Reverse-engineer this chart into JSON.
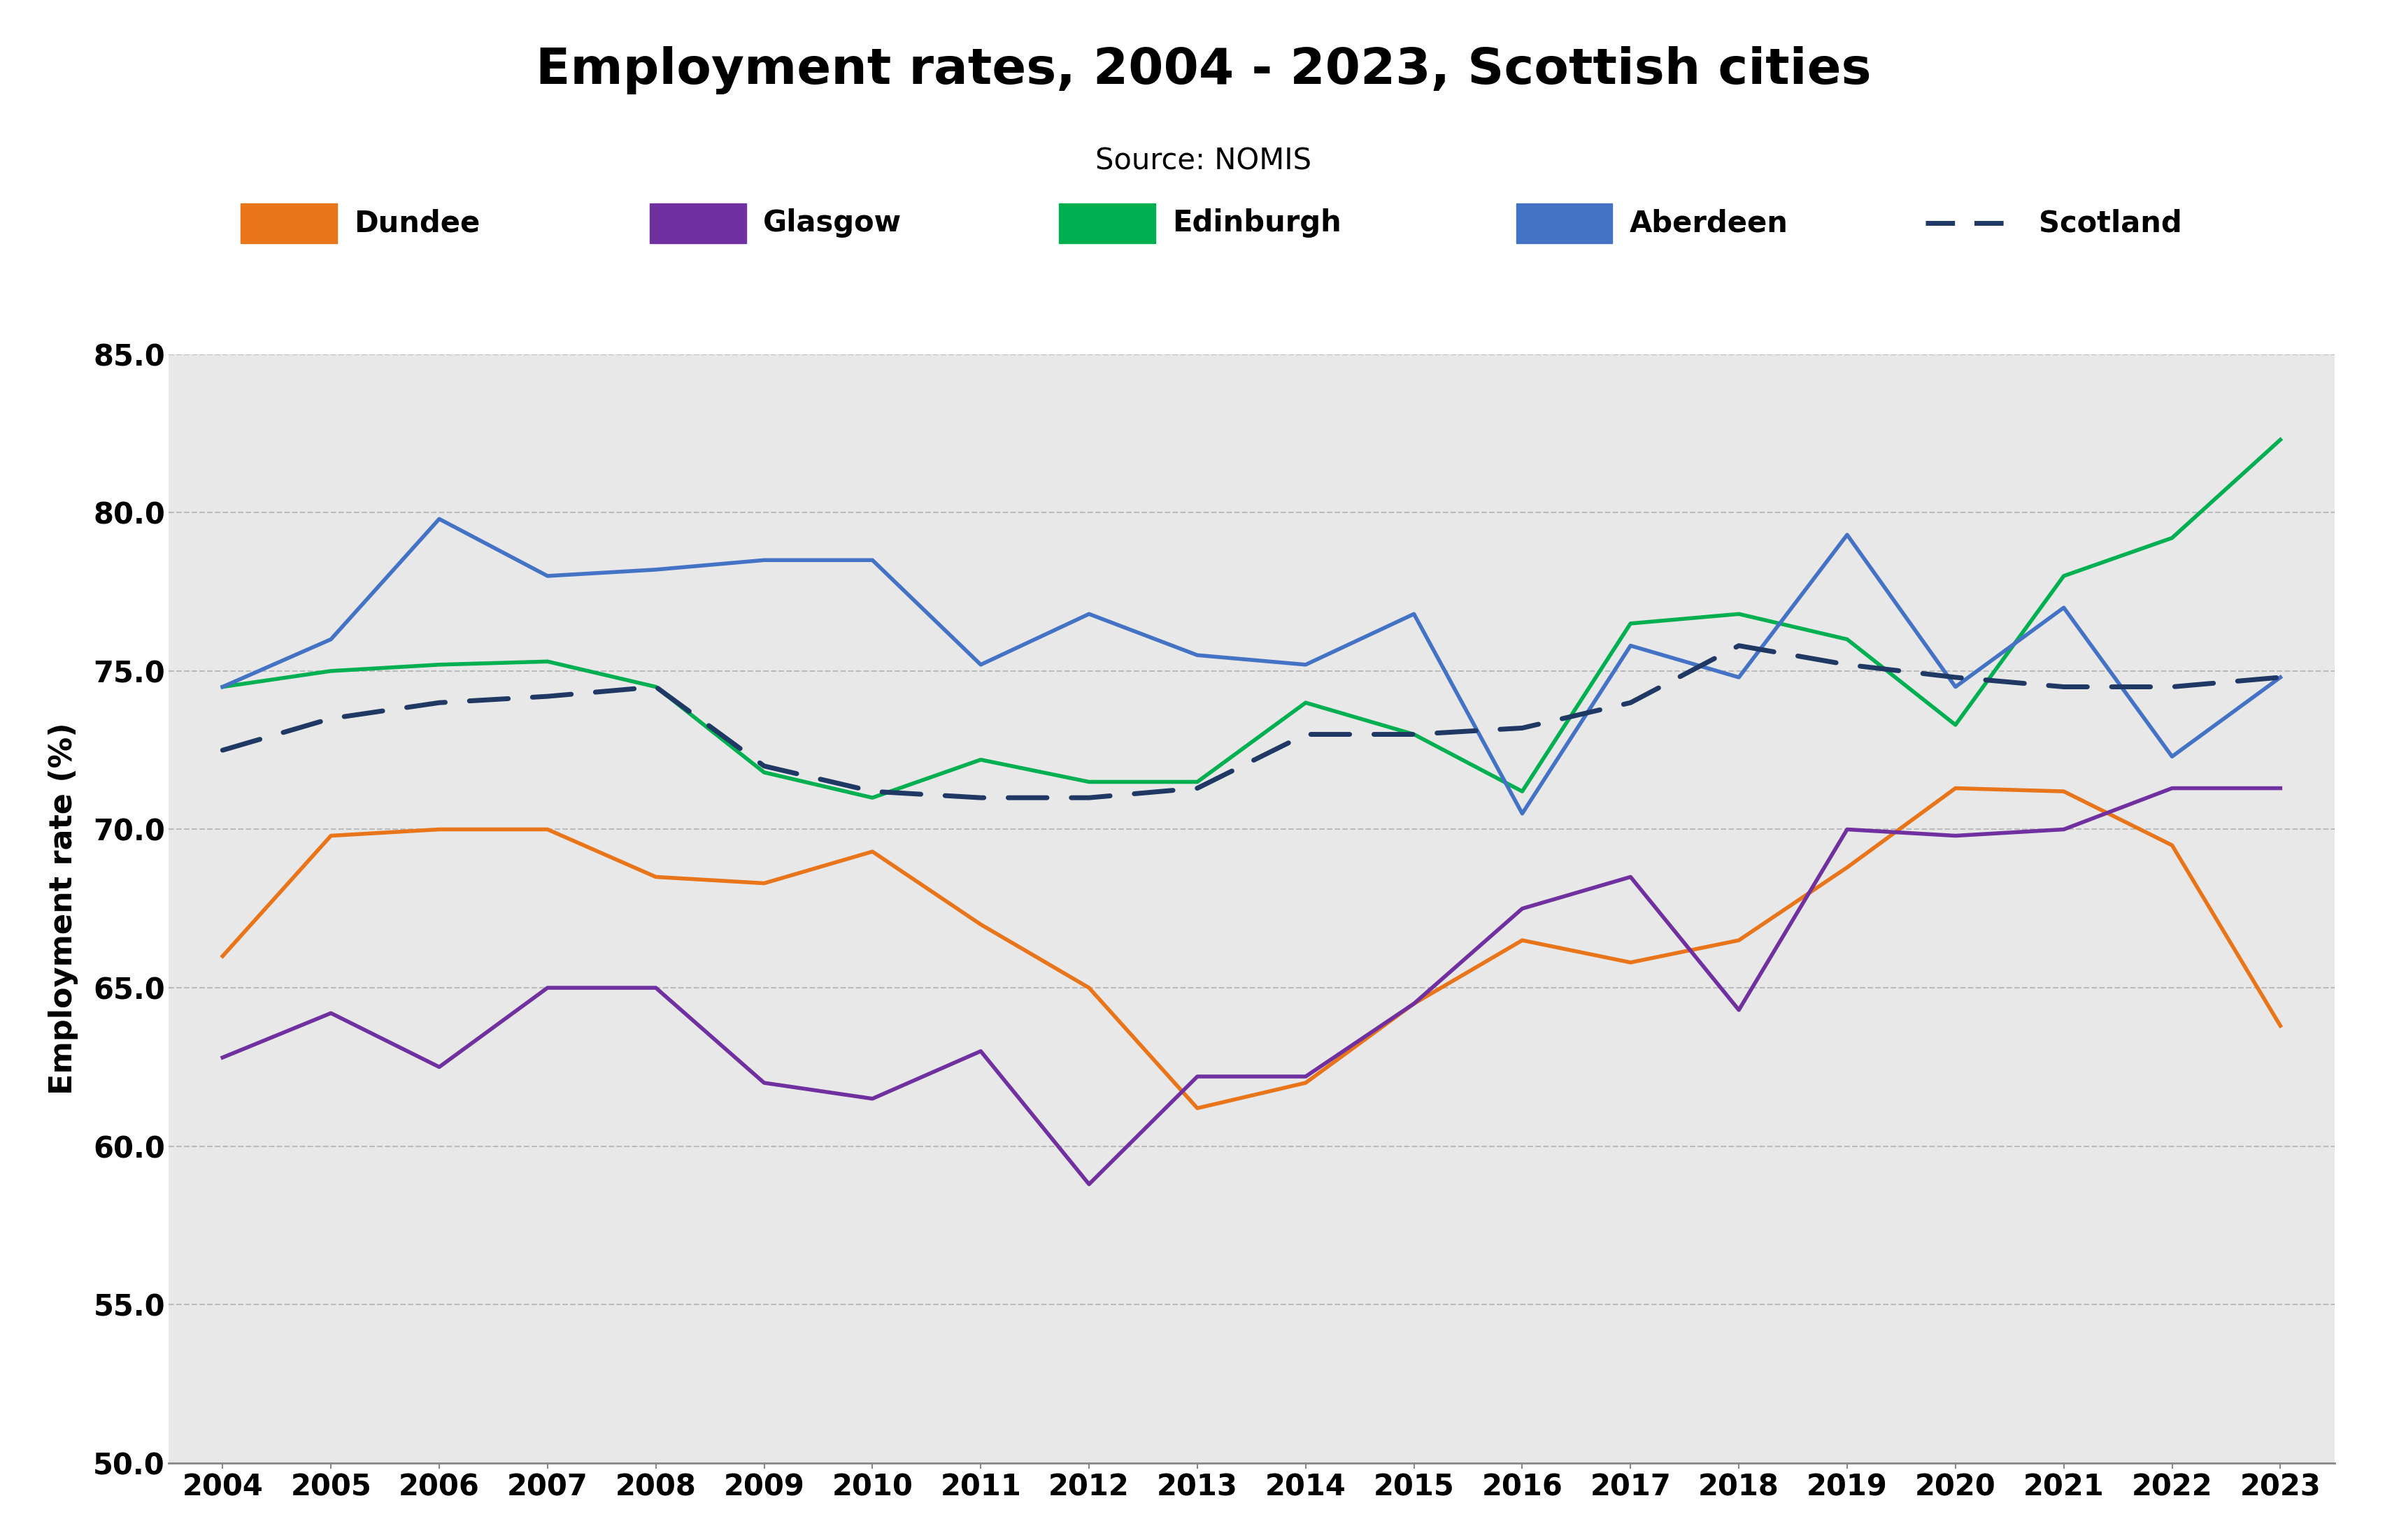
{
  "title": "Employment rates, 2004 - 2023, Scottish cities",
  "subtitle": "Source: NOMIS",
  "ylabel": "Employment rate (%)",
  "years": [
    2004,
    2005,
    2006,
    2007,
    2008,
    2009,
    2010,
    2011,
    2012,
    2013,
    2014,
    2015,
    2016,
    2017,
    2018,
    2019,
    2020,
    2021,
    2022,
    2023
  ],
  "series": {
    "Dundee": {
      "color": "#E8751A",
      "linestyle": "solid",
      "linewidth": 4.0,
      "values": [
        66.0,
        69.8,
        70.0,
        70.0,
        68.5,
        68.3,
        69.3,
        67.0,
        65.0,
        61.2,
        62.0,
        64.5,
        66.5,
        65.8,
        66.5,
        68.8,
        71.3,
        71.2,
        69.5,
        63.8
      ]
    },
    "Glasgow": {
      "color": "#7030A0",
      "linestyle": "solid",
      "linewidth": 4.0,
      "values": [
        62.8,
        64.2,
        62.5,
        65.0,
        65.0,
        62.0,
        61.5,
        63.0,
        58.8,
        62.2,
        62.2,
        64.5,
        67.5,
        68.5,
        64.3,
        70.0,
        69.8,
        70.0,
        71.3,
        71.3
      ]
    },
    "Edinburgh": {
      "color": "#00B050",
      "linestyle": "solid",
      "linewidth": 4.0,
      "values": [
        74.5,
        75.0,
        75.2,
        75.3,
        74.5,
        71.8,
        71.0,
        72.2,
        71.5,
        71.5,
        74.0,
        73.0,
        71.2,
        76.5,
        76.8,
        76.0,
        73.3,
        78.0,
        79.2,
        82.3
      ]
    },
    "Aberdeen": {
      "color": "#4472C4",
      "linestyle": "solid",
      "linewidth": 4.0,
      "values": [
        74.5,
        76.0,
        79.8,
        78.0,
        78.2,
        78.5,
        78.5,
        75.2,
        76.8,
        75.5,
        75.2,
        76.8,
        70.5,
        75.8,
        74.8,
        79.3,
        74.5,
        77.0,
        72.3,
        74.8
      ]
    },
    "Scotland": {
      "color": "#1F3864",
      "linestyle": "dashed",
      "linewidth": 5.0,
      "values": [
        72.5,
        73.5,
        74.0,
        74.2,
        74.5,
        72.0,
        71.2,
        71.0,
        71.0,
        71.3,
        73.0,
        73.0,
        73.2,
        74.0,
        75.8,
        75.2,
        74.8,
        74.5,
        74.5,
        74.8
      ]
    }
  },
  "ylim": [
    50.0,
    85.0
  ],
  "yticks": [
    50.0,
    55.0,
    60.0,
    65.0,
    70.0,
    75.0,
    80.0,
    85.0
  ],
  "background_color": "#E8E8E8",
  "figure_background": "#FFFFFF",
  "title_fontsize": 52,
  "subtitle_fontsize": 30,
  "axis_label_fontsize": 32,
  "tick_fontsize": 30,
  "legend_fontsize": 30
}
